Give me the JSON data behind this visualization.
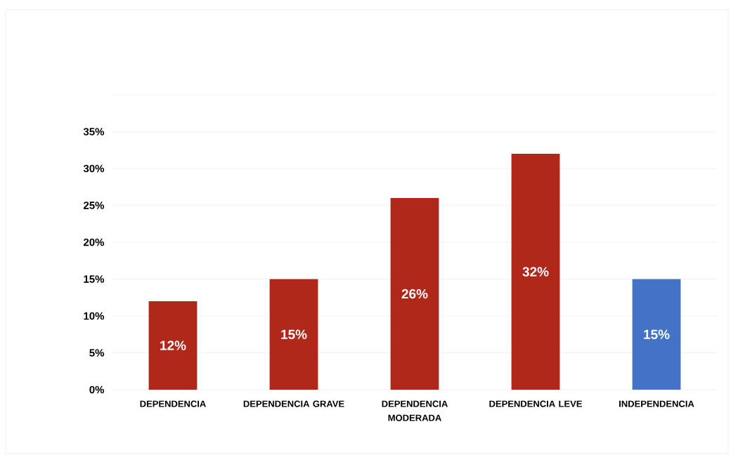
{
  "chart_data": {
    "type": "bar",
    "categories": [
      "DEPENDENCIA",
      "DEPENDENCIA GRAVE",
      "DEPENDENCIA MODERADA",
      "DEPENDENCIA LEVE",
      "INDEPENDENCIA"
    ],
    "values": [
      12,
      15,
      26,
      32,
      15
    ],
    "colors": [
      "#b0281a",
      "#b0281a",
      "#b0281a",
      "#b0281a",
      "#4472c4"
    ],
    "value_labels": [
      "12%",
      "15%",
      "26%",
      "32%",
      "15%"
    ],
    "ylim": [
      0,
      40
    ],
    "yticks": [
      {
        "value": 0,
        "label": "0%"
      },
      {
        "value": 5,
        "label": "5%"
      },
      {
        "value": 10,
        "label": "10%"
      },
      {
        "value": 15,
        "label": "15%"
      },
      {
        "value": 20,
        "label": "20%"
      },
      {
        "value": 25,
        "label": "25%"
      },
      {
        "value": 30,
        "label": "30%"
      },
      {
        "value": 35,
        "label": "35%"
      },
      {
        "value": 40,
        "label": null
      }
    ],
    "grid": "y"
  }
}
